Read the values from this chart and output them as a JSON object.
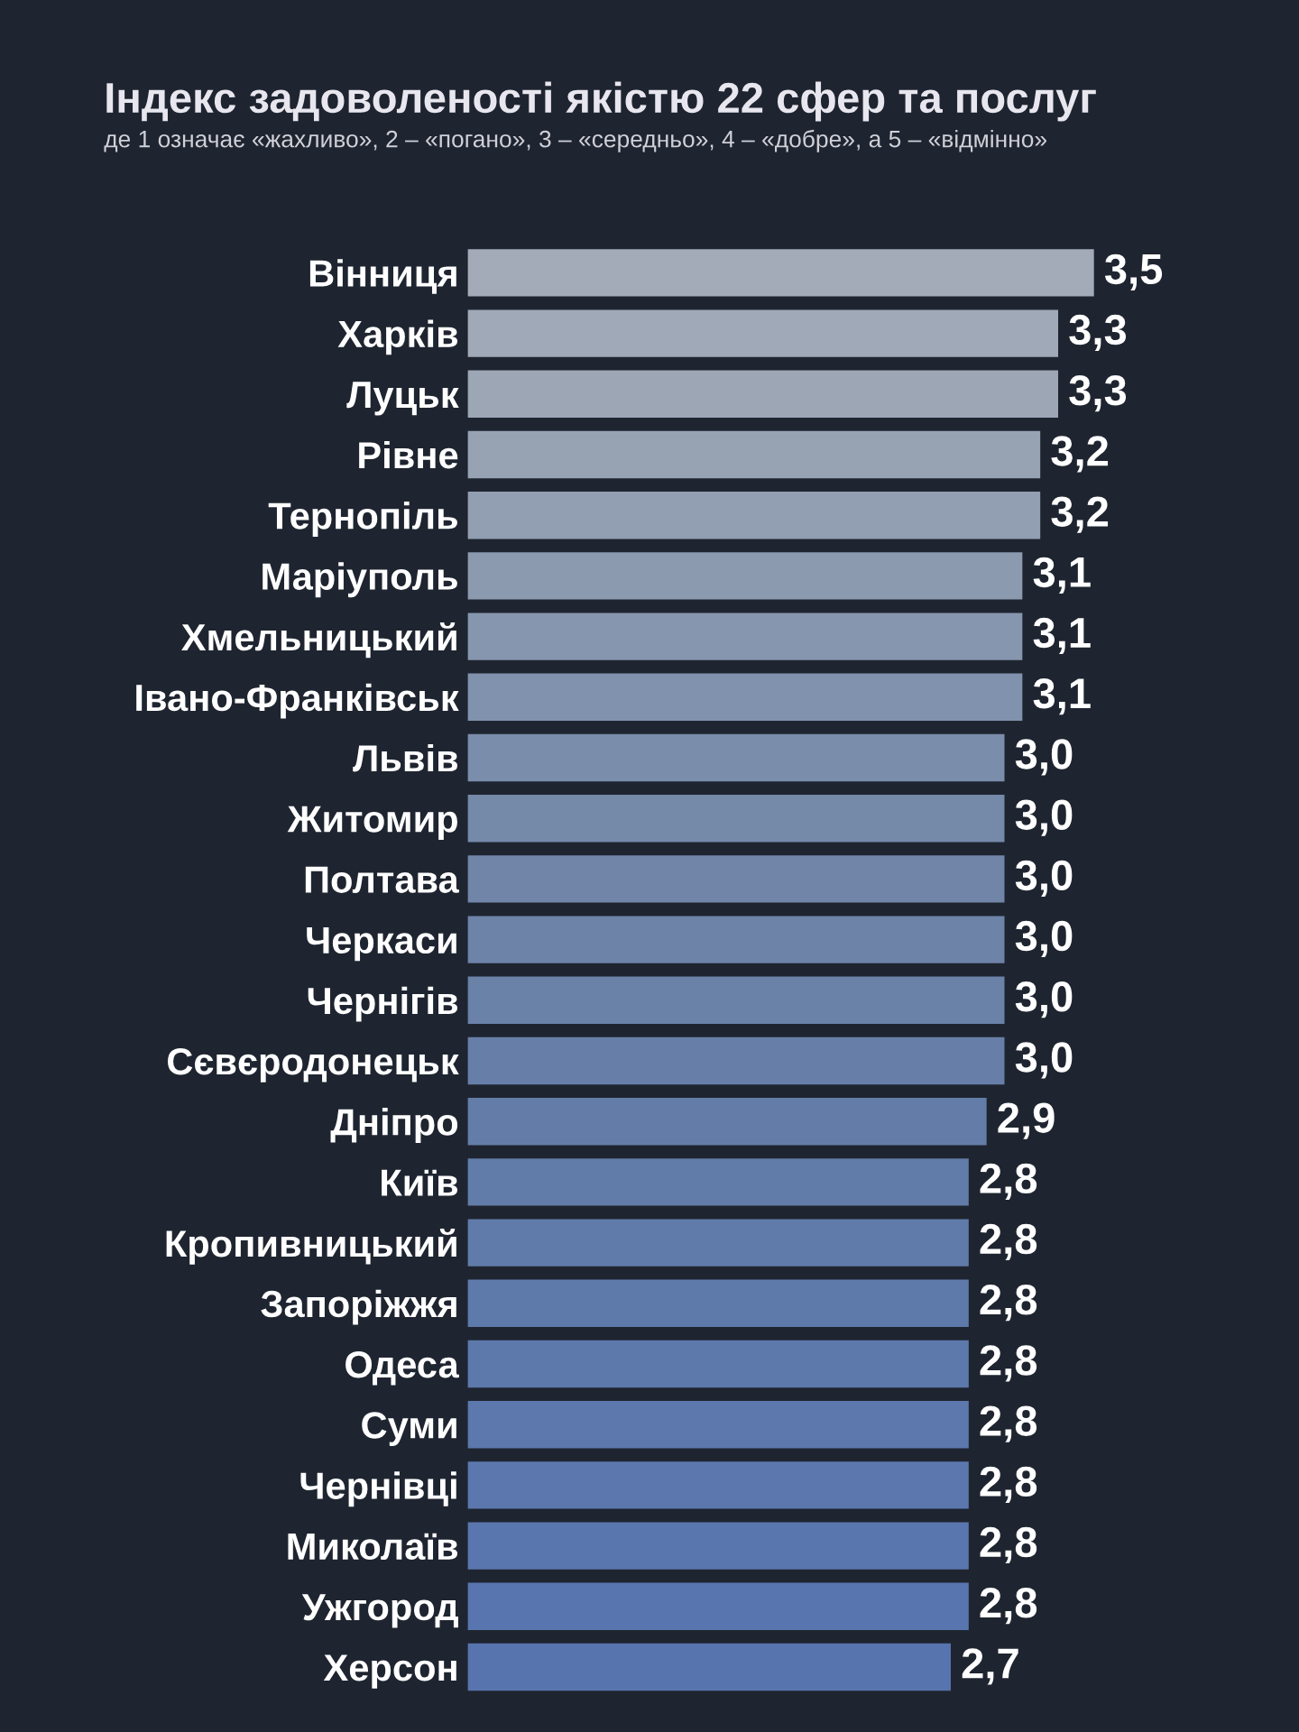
{
  "chart_data": {
    "type": "bar",
    "orientation": "horizontal",
    "title": "Індекс задоволеності якістю 22 сфер та послуг",
    "subtitle": "де 1 означає «жахливо», 2 – «погано», 3 – «середньо», 4 – «добре», а 5 – «відмінно»",
    "categories": [
      "Вінниця",
      "Харків",
      "Луцьк",
      "Рівне",
      "Тернопіль",
      "Маріуполь",
      "Хмельницький",
      "Івано-Франківськ",
      "Львів",
      "Житомир",
      "Полтава",
      "Черкаси",
      "Чернігів",
      "Сєвєродонецьк",
      "Дніпро",
      "Київ",
      "Кропивницький",
      "Запоріжжя",
      "Одеса",
      "Суми",
      "Чернівці",
      "Миколаїв",
      "Ужгород",
      "Херсон"
    ],
    "values": [
      3.5,
      3.3,
      3.3,
      3.2,
      3.2,
      3.1,
      3.1,
      3.1,
      3.0,
      3.0,
      3.0,
      3.0,
      3.0,
      3.0,
      2.9,
      2.8,
      2.8,
      2.8,
      2.8,
      2.8,
      2.8,
      2.8,
      2.8,
      2.7
    ],
    "value_labels": [
      "3,5",
      "3,3",
      "3,3",
      "3,2",
      "3,2",
      "3,1",
      "3,1",
      "3,1",
      "3,0",
      "3,0",
      "3,0",
      "3,0",
      "3,0",
      "3,0",
      "2,9",
      "2,8",
      "2,8",
      "2,8",
      "2,8",
      "2,8",
      "2,8",
      "2,8",
      "2,8",
      "2,7"
    ],
    "colors": [
      "#a3abb8",
      "#a0a9b7",
      "#9ca6b5",
      "#97a2b3",
      "#929fb2",
      "#8c9ab0",
      "#8696ae",
      "#8092ad",
      "#7a8dab",
      "#7589a9",
      "#7085a8",
      "#6d83a8",
      "#6a81a8",
      "#677fa8",
      "#647da8",
      "#627ca9",
      "#607baa",
      "#5e7aab",
      "#5d79ac",
      "#5c78ad",
      "#5b77ae",
      "#5a76ae",
      "#5975af",
      "#5874af"
    ],
    "grid": false,
    "legend": false
  }
}
